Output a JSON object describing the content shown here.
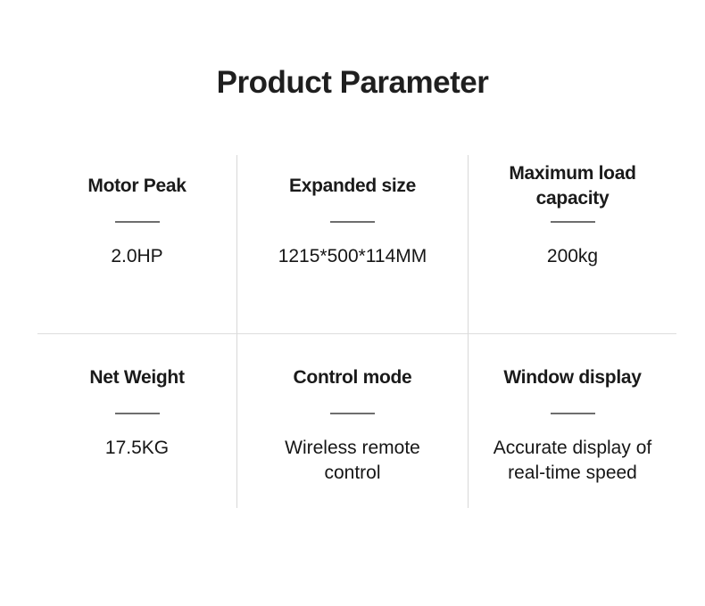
{
  "page": {
    "title": "Product Parameter",
    "background": "#ffffff"
  },
  "colors": {
    "text": "#1c1c1c",
    "heading_divider": "#6e6e6e",
    "grid_line": "#d8d8d8"
  },
  "grid": {
    "cells": [
      {
        "id": "motor-peak",
        "heading": "Motor Peak",
        "value": "2.0HP"
      },
      {
        "id": "expanded-size",
        "heading": "Expanded size",
        "value": "1215*500*114MM"
      },
      {
        "id": "maximum-load-capacity",
        "heading": "Maximum load capacity",
        "value": "200kg"
      },
      {
        "id": "net-weight",
        "heading": "Net Weight",
        "value": "17.5KG"
      },
      {
        "id": "control-mode",
        "heading": "Control mode",
        "value": "Wireless remote control"
      },
      {
        "id": "window-display",
        "heading": "Window display",
        "value": "Accurate display of real-time speed"
      }
    ]
  }
}
